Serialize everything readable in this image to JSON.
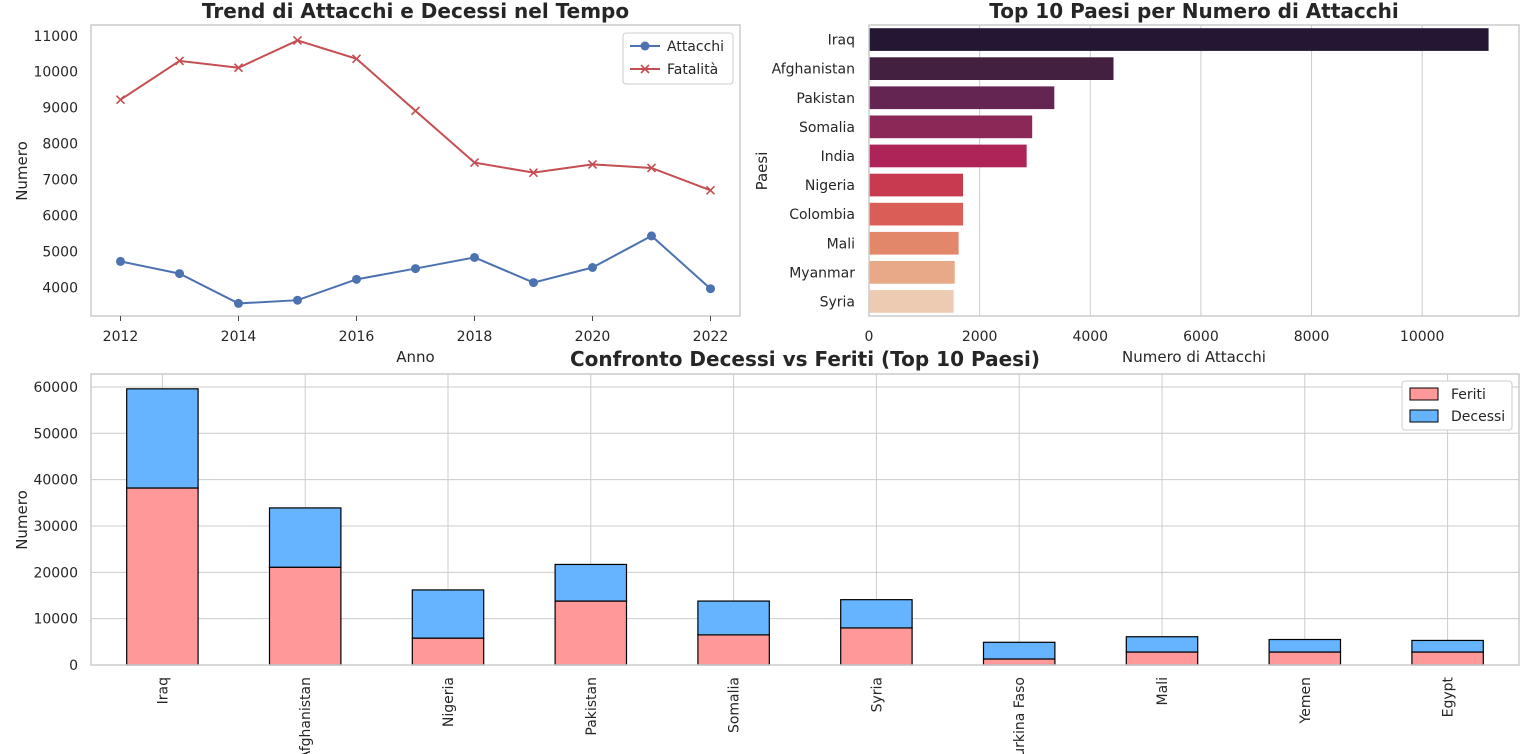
{
  "chart_data": [
    {
      "type": "line",
      "title": "Trend di Attacchi e Decessi nel Tempo",
      "xlabel": "Anno",
      "ylabel": "Numero",
      "x": [
        2012,
        2013,
        2014,
        2015,
        2016,
        2017,
        2018,
        2019,
        2020,
        2021,
        2022
      ],
      "xticks": [
        "2012",
        "2014",
        "2016",
        "2018",
        "2020",
        "2022"
      ],
      "yticks": [
        "4000",
        "5000",
        "6000",
        "7000",
        "8000",
        "9000",
        "10000",
        "11000"
      ],
      "xlim": [
        2011.5,
        2022.5
      ],
      "ylim": [
        3200,
        11300
      ],
      "grid": false,
      "legend_position": "top-right",
      "series": [
        {
          "name": "Attacchi",
          "color": "#4c72b0",
          "marker": "circle",
          "values": [
            4720,
            4380,
            3550,
            3640,
            4220,
            4520,
            4830,
            4130,
            4550,
            5430,
            3960
          ]
        },
        {
          "name": "Fatalità",
          "color": "#c44e52",
          "marker": "x",
          "values": [
            9220,
            10300,
            10110,
            10870,
            10360,
            8910,
            7470,
            7190,
            7420,
            7320,
            6700
          ]
        }
      ]
    },
    {
      "type": "bar",
      "orientation": "horizontal",
      "title": "Top 10 Paesi per Numero di Attacchi",
      "xlabel": "Numero di Attacchi",
      "ylabel": "Paesi",
      "categories": [
        "Iraq",
        "Afghanistan",
        "Pakistan",
        "Somalia",
        "India",
        "Nigeria",
        "Colombia",
        "Mali",
        "Myanmar",
        "Syria"
      ],
      "values": [
        11200,
        4420,
        3350,
        2950,
        2850,
        1700,
        1700,
        1620,
        1550,
        1530
      ],
      "colors": [
        "#241733",
        "#43203f",
        "#652552",
        "#8b2858",
        "#ae2458",
        "#c83a50",
        "#da5e57",
        "#e2876a",
        "#e8a989",
        "#edcbb3"
      ],
      "xticks": [
        "0",
        "2000",
        "4000",
        "6000",
        "8000",
        "10000"
      ],
      "xlim": [
        0,
        11750
      ],
      "grid": true
    },
    {
      "type": "bar",
      "orientation": "vertical",
      "stacked": true,
      "title": "Confronto Decessi vs Feriti (Top 10 Paesi)",
      "xlabel": "",
      "ylabel": "Numero",
      "categories": [
        "Iraq",
        "Afghanistan",
        "Nigeria",
        "Pakistan",
        "Somalia",
        "Syria",
        "Burkina Faso",
        "Mali",
        "Yemen",
        "Egypt"
      ],
      "yticks": [
        "0",
        "10000",
        "20000",
        "30000",
        "40000",
        "50000",
        "60000"
      ],
      "ylim": [
        0,
        62800
      ],
      "grid": true,
      "legend_position": "top-right",
      "series": [
        {
          "name": "Feriti",
          "color": "#ff9999",
          "values": [
            38200,
            21100,
            5800,
            13800,
            6500,
            8000,
            1300,
            2800,
            2800,
            2800
          ]
        },
        {
          "name": "Decessi",
          "color": "#66b3ff",
          "values": [
            21400,
            12800,
            10400,
            7900,
            7300,
            6100,
            3600,
            3300,
            2700,
            2500
          ]
        }
      ]
    }
  ]
}
